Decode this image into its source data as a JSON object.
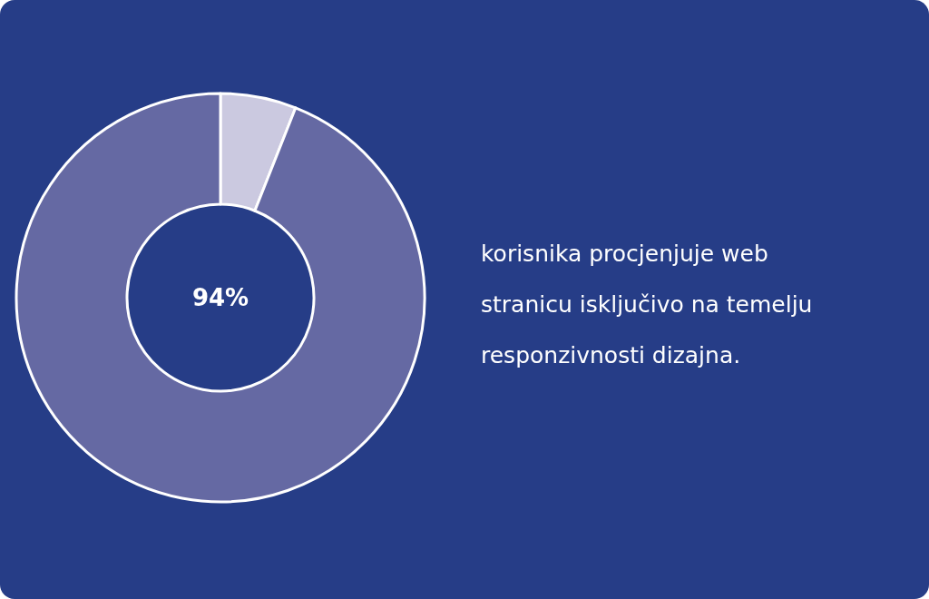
{
  "chart_data": {
    "type": "donut",
    "categories": [
      null,
      null
    ],
    "values": [
      6,
      94
    ],
    "colors": [
      "#cbc9e0",
      "#6569a3"
    ],
    "value_labels": [
      null,
      "94%"
    ],
    "annotations": [
      "korisnika procjenjuje web",
      "stranicu isključivo na temelju",
      "responzivnosti dizajna."
    ]
  }
}
